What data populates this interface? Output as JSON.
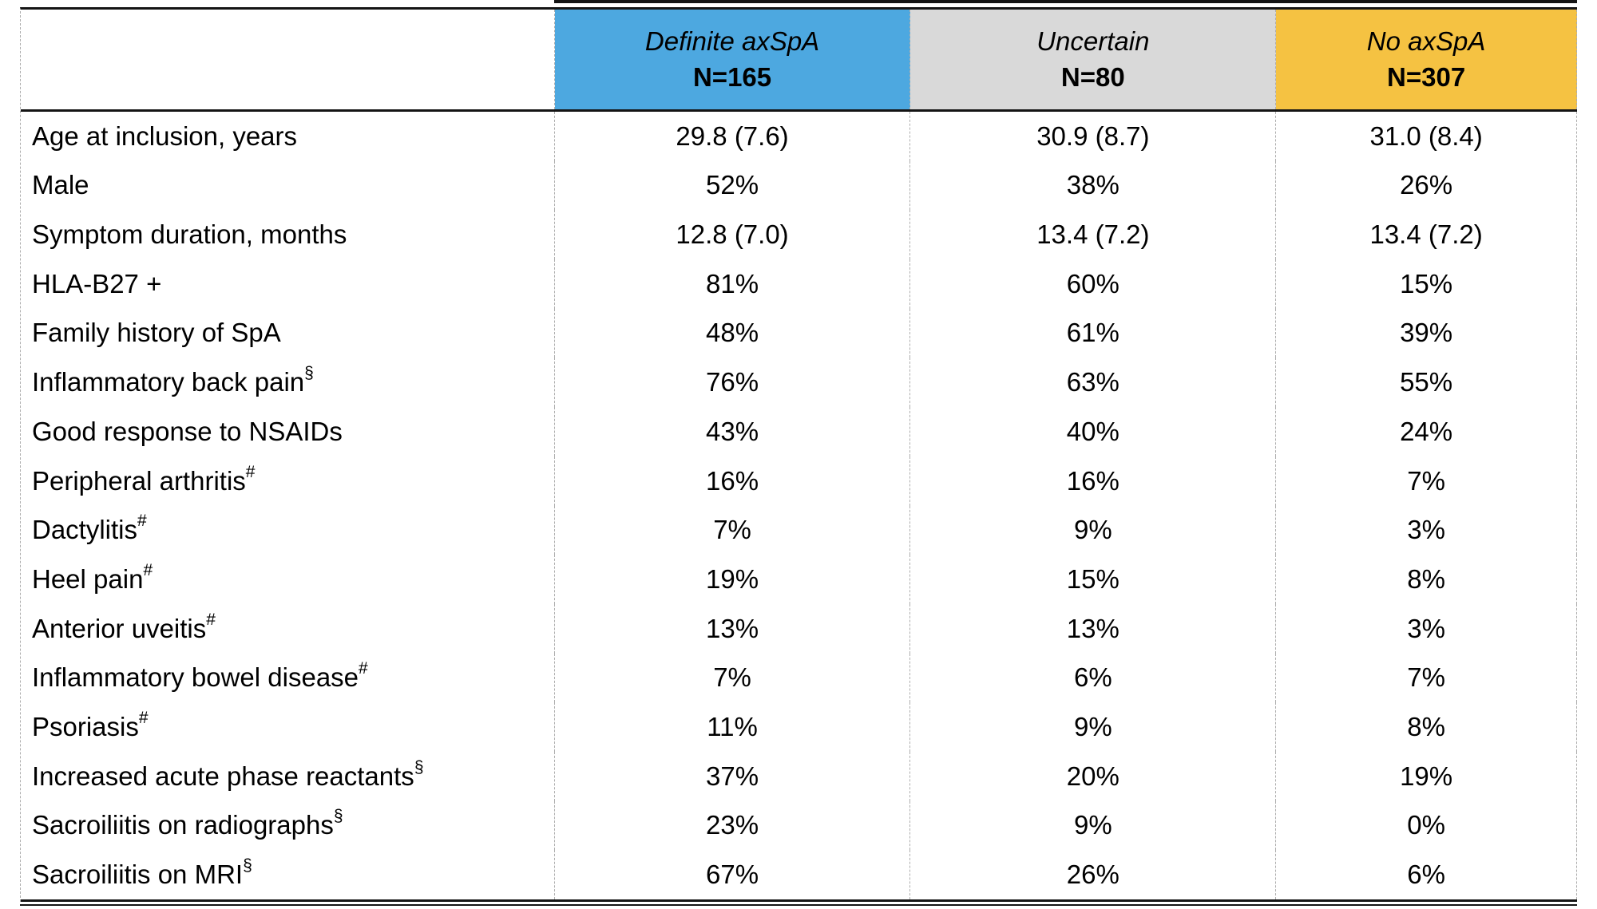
{
  "table": {
    "columns": [
      {
        "title": "Definite axSpA",
        "n": "N=165",
        "color": "#4DA8E0"
      },
      {
        "title": "Uncertain",
        "n": "N=80",
        "color": "#D9D9D9"
      },
      {
        "title": "No axSpA",
        "n": "N=307",
        "color": "#F5C242"
      }
    ],
    "rows": [
      {
        "label": "Age at inclusion, years",
        "sup": "",
        "values": [
          "29.8 (7.6)",
          "30.9 (8.7)",
          "31.0 (8.4)"
        ]
      },
      {
        "label": "Male",
        "sup": "",
        "values": [
          "52%",
          "38%",
          "26%"
        ]
      },
      {
        "label": "Symptom duration, months",
        "sup": "",
        "values": [
          "12.8 (7.0)",
          "13.4 (7.2)",
          "13.4 (7.2)"
        ]
      },
      {
        "label": "HLA-B27 +",
        "sup": "",
        "values": [
          "81%",
          "60%",
          "15%"
        ]
      },
      {
        "label": "Family history of SpA",
        "sup": "",
        "values": [
          "48%",
          "61%",
          "39%"
        ]
      },
      {
        "label": "Inflammatory back pain",
        "sup": "§",
        "values": [
          "76%",
          "63%",
          "55%"
        ]
      },
      {
        "label": "Good response to NSAIDs",
        "sup": "",
        "values": [
          "43%",
          "40%",
          "24%"
        ]
      },
      {
        "label": "Peripheral arthritis",
        "sup": "#",
        "values": [
          "16%",
          "16%",
          "7%"
        ]
      },
      {
        "label": "Dactylitis",
        "sup": "#",
        "values": [
          "7%",
          "9%",
          "3%"
        ]
      },
      {
        "label": "Heel pain",
        "sup": "#",
        "values": [
          "19%",
          "15%",
          "8%"
        ]
      },
      {
        "label": "Anterior uveitis",
        "sup": "#",
        "values": [
          "13%",
          "13%",
          "3%"
        ]
      },
      {
        "label": "Inflammatory bowel disease",
        "sup": "#",
        "values": [
          "7%",
          "6%",
          "7%"
        ]
      },
      {
        "label": "Psoriasis",
        "sup": "#",
        "values": [
          "11%",
          "9%",
          "8%"
        ]
      },
      {
        "label": "Increased acute phase reactants",
        "sup": "§",
        "values": [
          "37%",
          "20%",
          "19%"
        ]
      },
      {
        "label": "Sacroiliitis on radiographs",
        "sup": "§",
        "values": [
          "23%",
          "9%",
          "0%"
        ]
      },
      {
        "label": "Sacroiliitis on MRI",
        "sup": "§",
        "values": [
          "67%",
          "26%",
          "6%"
        ]
      }
    ]
  }
}
